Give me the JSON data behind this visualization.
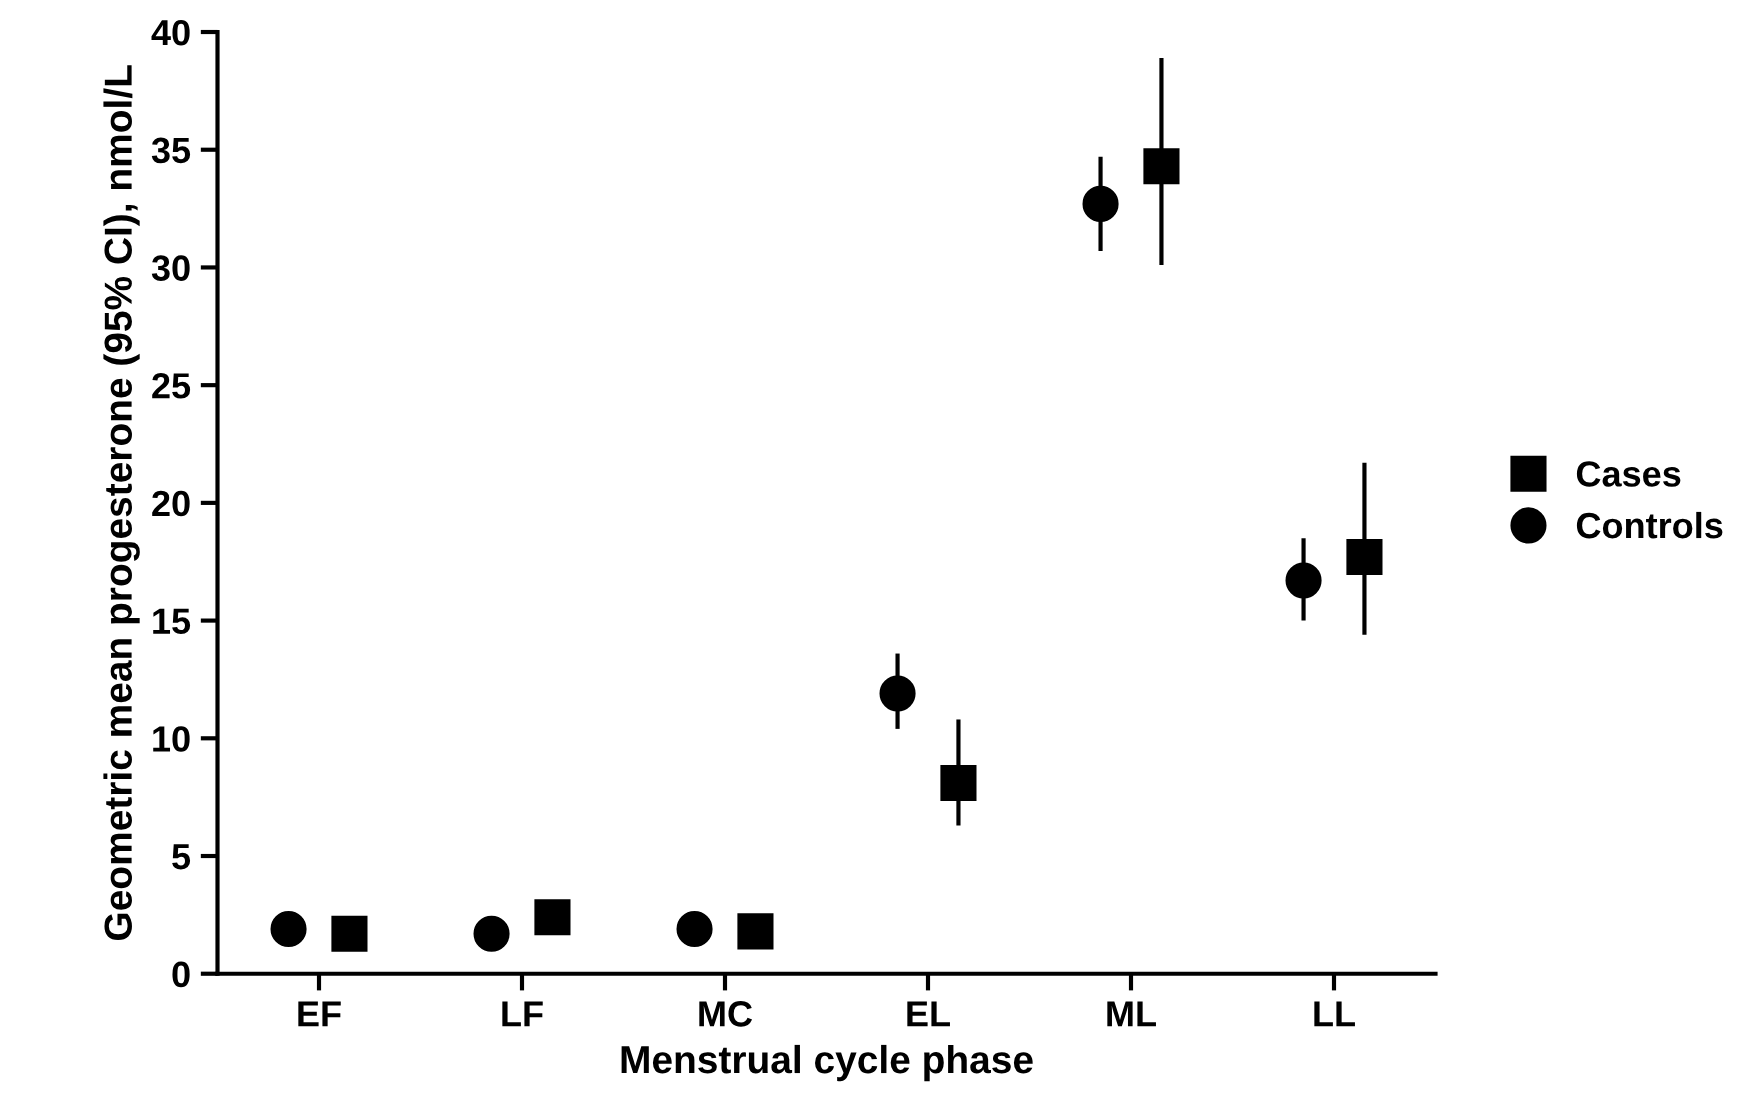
{
  "chart_data": {
    "type": "scatter",
    "xlabel": "Menstrual cycle phase",
    "ylabel": "Geometric mean progesterone (95% CI), nmol/L",
    "categories": [
      "EF",
      "LF",
      "MC",
      "EL",
      "ML",
      "LL"
    ],
    "series": [
      {
        "name": "Cases",
        "color": "#000000",
        "marker": "square",
        "values": [
          1.7,
          2.4,
          1.8,
          8.1,
          34.3,
          17.7
        ],
        "errors": [
          null,
          [
            2.4,
            3.1
          ],
          null,
          [
            6.3,
            10.8
          ],
          [
            30.1,
            38.9
          ],
          [
            14.4,
            21.7
          ]
        ]
      },
      {
        "name": "Controls",
        "color": "#000000",
        "marker": "circle",
        "values": [
          1.9,
          1.7,
          1.9,
          11.9,
          32.7,
          16.7
        ],
        "errors": [
          null,
          null,
          null,
          [
            10.4,
            13.6
          ],
          [
            30.7,
            34.7
          ],
          [
            15.0,
            18.5
          ]
        ]
      }
    ],
    "ylim": [
      0,
      40
    ],
    "yticks": [
      0,
      5,
      10,
      15,
      20,
      25,
      30,
      35,
      40
    ],
    "grid": false,
    "legend": "right"
  }
}
